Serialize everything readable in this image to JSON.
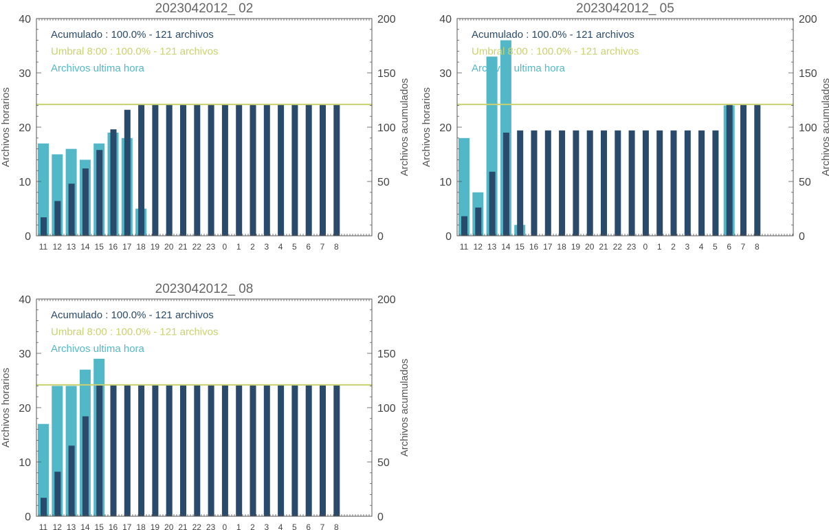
{
  "colors": {
    "hourly": "#52b8c8",
    "cumulative": "#2a4a6b",
    "threshold": "#c8d26e",
    "axis": "#555555"
  },
  "chart_data": [
    {
      "type": "bar",
      "title": "2023042012_ 02",
      "categories": [
        "11",
        "12",
        "13",
        "14",
        "15",
        "16",
        "17",
        "18",
        "19",
        "20",
        "21",
        "22",
        "23",
        "0",
        "1",
        "2",
        "3",
        "4",
        "5",
        "6",
        "7",
        "8"
      ],
      "ylabel_left": "Archivos horarios",
      "ylabel_right": "Archivos acumulados",
      "ylim_left": [
        0,
        40
      ],
      "ylim_right": [
        0,
        200
      ],
      "yticks_left": [
        "0",
        "10",
        "20",
        "30",
        "40"
      ],
      "yticks_right": [
        "0",
        "50",
        "100",
        "150",
        "200"
      ],
      "threshold_value": 121,
      "legend": [
        "Acumulado : 100.0% - 121 archivos",
        "Umbral 8:00 : 100.0% - 121 archivos",
        "Archivos ultima hora"
      ],
      "series": [
        {
          "name": "Archivos ultima hora",
          "axis": "left",
          "values": [
            17,
            15,
            16,
            14,
            17,
            19,
            18,
            5,
            0,
            0,
            0,
            0,
            0,
            0,
            0,
            0,
            0,
            0,
            0,
            0,
            0,
            0
          ]
        },
        {
          "name": "Acumulado",
          "axis": "right",
          "values": [
            17,
            32,
            48,
            62,
            79,
            98,
            116,
            121,
            121,
            121,
            121,
            121,
            121,
            121,
            121,
            121,
            121,
            121,
            121,
            121,
            121,
            121
          ]
        }
      ]
    },
    {
      "type": "bar",
      "title": "2023042012_ 05",
      "categories": [
        "11",
        "12",
        "13",
        "14",
        "15",
        "16",
        "17",
        "18",
        "19",
        "20",
        "21",
        "22",
        "23",
        "0",
        "1",
        "2",
        "3",
        "4",
        "5",
        "6",
        "7",
        "8"
      ],
      "ylabel_left": "Archivos horarios",
      "ylabel_right": "Archivos acumulados",
      "ylim_left": [
        0,
        40
      ],
      "ylim_right": [
        0,
        200
      ],
      "yticks_left": [
        "0",
        "10",
        "20",
        "30",
        "40"
      ],
      "yticks_right": [
        "0",
        "50",
        "100",
        "150",
        "200"
      ],
      "threshold_value": 121,
      "legend": [
        "Acumulado : 100.0% - 121 archivos",
        "Umbral 8:00 : 100.0% - 121 archivos",
        "Archivos ultima hora"
      ],
      "series": [
        {
          "name": "Archivos ultima hora",
          "axis": "left",
          "values": [
            18,
            8,
            33,
            36,
            2,
            0,
            0,
            0,
            0,
            0,
            0,
            0,
            0,
            0,
            0,
            0,
            0,
            0,
            0,
            24,
            0,
            0
          ]
        },
        {
          "name": "Acumulado",
          "axis": "right",
          "values": [
            18,
            26,
            59,
            95,
            97,
            97,
            97,
            97,
            97,
            97,
            97,
            97,
            97,
            97,
            97,
            97,
            97,
            97,
            97,
            121,
            121,
            121
          ]
        }
      ]
    },
    {
      "type": "bar",
      "title": "2023042012_ 08",
      "categories": [
        "11",
        "12",
        "13",
        "14",
        "15",
        "16",
        "17",
        "18",
        "19",
        "20",
        "21",
        "22",
        "23",
        "0",
        "1",
        "2",
        "3",
        "4",
        "5",
        "6",
        "7",
        "8"
      ],
      "ylabel_left": "Archivos horarios",
      "ylabel_right": "Archivos acumulados",
      "ylim_left": [
        0,
        40
      ],
      "ylim_right": [
        0,
        200
      ],
      "yticks_left": [
        "0",
        "10",
        "20",
        "30",
        "40"
      ],
      "yticks_right": [
        "0",
        "50",
        "100",
        "150",
        "200"
      ],
      "threshold_value": 121,
      "legend": [
        "Acumulado : 100.0% - 121 archivos",
        "Umbral 8:00 : 100.0% - 121 archivos",
        "Archivos ultima hora"
      ],
      "series": [
        {
          "name": "Archivos ultima hora",
          "axis": "left",
          "values": [
            17,
            24,
            24,
            27,
            29,
            0,
            0,
            0,
            0,
            0,
            0,
            0,
            0,
            0,
            0,
            0,
            0,
            0,
            0,
            0,
            0,
            0
          ]
        },
        {
          "name": "Acumulado",
          "axis": "right",
          "values": [
            17,
            41,
            65,
            92,
            121,
            121,
            121,
            121,
            121,
            121,
            121,
            121,
            121,
            121,
            121,
            121,
            121,
            121,
            121,
            121,
            121,
            121
          ]
        }
      ]
    }
  ]
}
